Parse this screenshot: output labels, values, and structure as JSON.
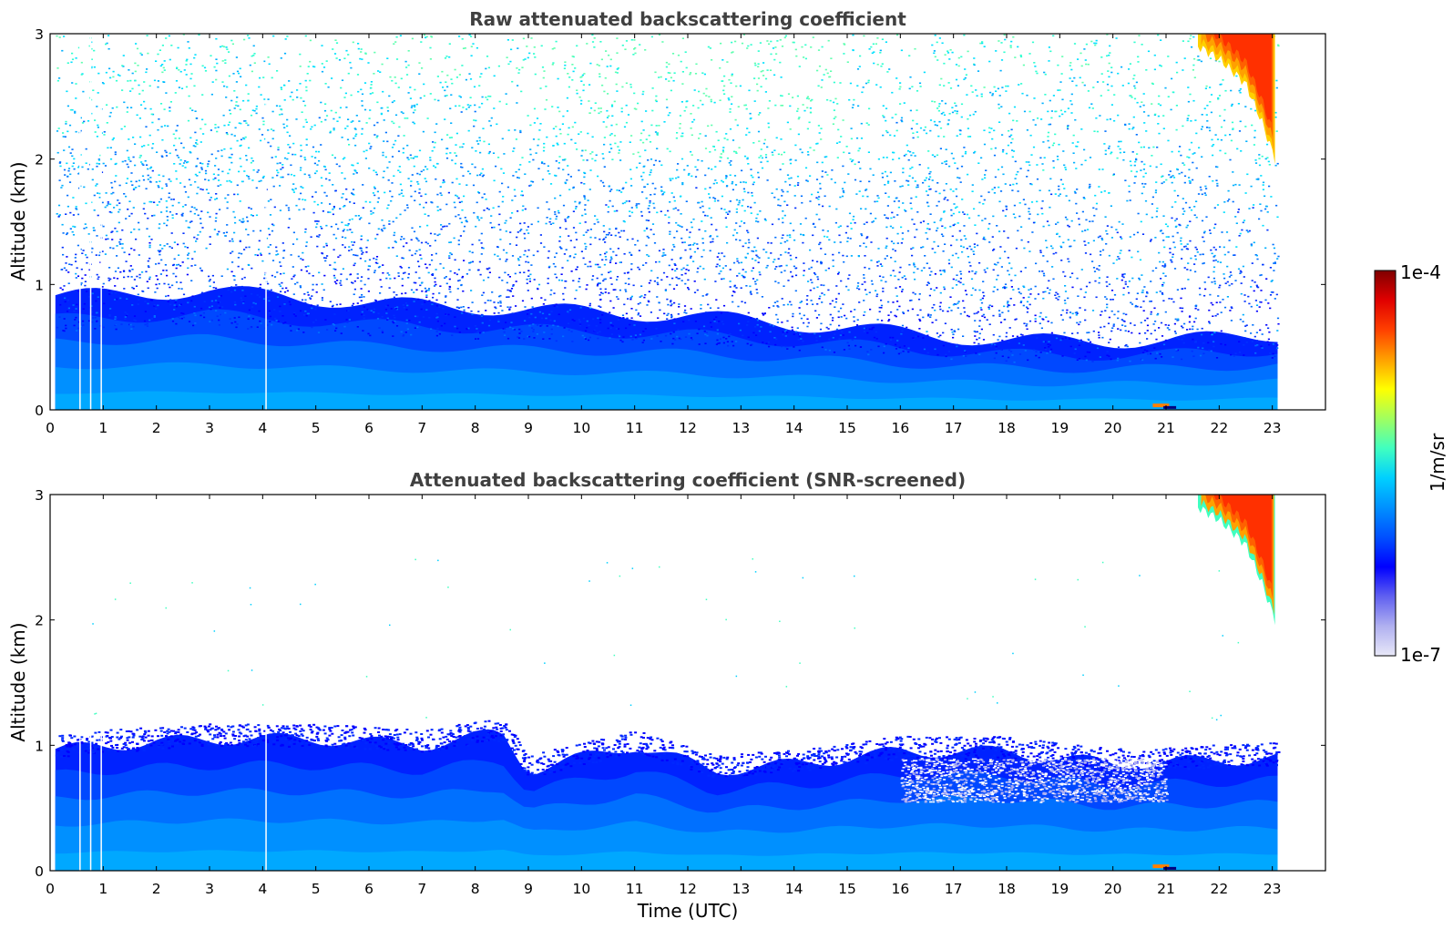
{
  "chart_data": [
    {
      "type": "heatmap",
      "title": "Raw attenuated backscattering coefficient",
      "xlabel": "",
      "ylabel": "Altitude (km)",
      "xlim": [
        0,
        24
      ],
      "ylim": [
        0,
        3
      ],
      "xticks": [
        "0",
        "1",
        "2",
        "3",
        "4",
        "5",
        "6",
        "7",
        "8",
        "9",
        "10",
        "11",
        "12",
        "13",
        "14",
        "15",
        "16",
        "17",
        "18",
        "19",
        "20",
        "21",
        "22",
        "23"
      ],
      "yticks": [
        "0",
        "1",
        "2",
        "3"
      ],
      "data_end_hour": 23.1,
      "noise_profile": "signal above ~1 km is noisy (scattered cyan/green/blue speckle); dense blue boundary layer below ~0.5-1 km",
      "boundary_layer_top_km": [
        {
          "t": 0,
          "z": 0.9
        },
        {
          "t": 3,
          "z": 0.95
        },
        {
          "t": 6,
          "z": 0.85
        },
        {
          "t": 9,
          "z": 0.8
        },
        {
          "t": 12,
          "z": 0.75
        },
        {
          "t": 15,
          "z": 0.65
        },
        {
          "t": 18,
          "z": 0.55
        },
        {
          "t": 21,
          "z": 0.55
        },
        {
          "t": 23.1,
          "z": 0.6
        }
      ],
      "cloud": {
        "t_start": 21.6,
        "t_end": 23.05,
        "base_km": [
          [
            21.6,
            2.9
          ],
          [
            22.0,
            2.8
          ],
          [
            22.5,
            2.6
          ],
          [
            22.8,
            2.3
          ],
          [
            23.05,
            2.0
          ]
        ],
        "top_km": 3.0
      }
    },
    {
      "type": "heatmap",
      "title": "Attenuated backscattering coefficient (SNR-screened)",
      "xlabel": "Time (UTC)",
      "ylabel": "Altitude (km)",
      "xlim": [
        0,
        24
      ],
      "ylim": [
        0,
        3
      ],
      "xticks": [
        "0",
        "1",
        "2",
        "3",
        "4",
        "5",
        "6",
        "7",
        "8",
        "9",
        "10",
        "11",
        "12",
        "13",
        "14",
        "15",
        "16",
        "17",
        "18",
        "19",
        "20",
        "21",
        "22",
        "23"
      ],
      "yticks": [
        "0",
        "1",
        "2",
        "3"
      ],
      "data_end_hour": 23.1,
      "boundary_layer_top_km": [
        {
          "t": 0,
          "z": 0.95
        },
        {
          "t": 1,
          "z": 1.0
        },
        {
          "t": 3,
          "z": 1.05
        },
        {
          "t": 5,
          "z": 1.05
        },
        {
          "t": 7,
          "z": 1.0
        },
        {
          "t": 8.5,
          "z": 1.1
        },
        {
          "t": 9,
          "z": 0.8
        },
        {
          "t": 11,
          "z": 1.0
        },
        {
          "t": 12.5,
          "z": 0.8
        },
        {
          "t": 14,
          "z": 0.85
        },
        {
          "t": 16,
          "z": 0.95
        },
        {
          "t": 18,
          "z": 0.95
        },
        {
          "t": 20,
          "z": 0.85
        },
        {
          "t": 23.1,
          "z": 0.9
        }
      ],
      "cloud": {
        "t_start": 21.6,
        "t_end": 23.05,
        "base_km": [
          [
            21.6,
            2.9
          ],
          [
            22.0,
            2.8
          ],
          [
            22.5,
            2.6
          ],
          [
            22.8,
            2.3
          ],
          [
            23.05,
            2.0
          ]
        ],
        "top_km": 3.0
      }
    }
  ],
  "colorbar": {
    "label": "1/m/sr",
    "max_label": "1e-4",
    "min_label": "1e-7",
    "scale": "log",
    "colormap": "jet",
    "colors": [
      "#e8e8f8",
      "#b0b0f0",
      "#6060f0",
      "#0000ff",
      "#0050ff",
      "#0090ff",
      "#00d0ff",
      "#40ffc0",
      "#a0ff60",
      "#ffff00",
      "#ffa000",
      "#ff4000",
      "#e00000",
      "#800000"
    ]
  }
}
